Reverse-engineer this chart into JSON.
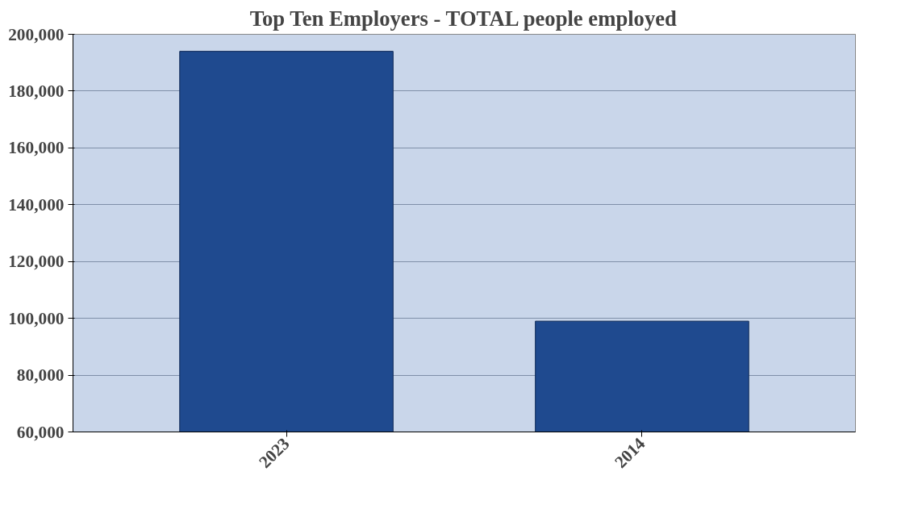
{
  "chart_data": {
    "type": "bar",
    "title": "Top Ten Employers - TOTAL people employed",
    "categories": [
      "2023",
      "2014"
    ],
    "values": [
      194000,
      99000
    ],
    "color": "#1f4a8f",
    "ylim": [
      60000,
      200000
    ],
    "yticks": [
      {
        "value": 60000,
        "label": "60,000"
      },
      {
        "value": 80000,
        "label": "80,000"
      },
      {
        "value": 100000,
        "label": "100,000"
      },
      {
        "value": 120000,
        "label": "120,000"
      },
      {
        "value": 140000,
        "label": "140,000"
      },
      {
        "value": 160000,
        "label": "160,000"
      },
      {
        "value": 180000,
        "label": "180,000"
      },
      {
        "value": 200000,
        "label": "200,000"
      }
    ],
    "grid": "y"
  }
}
